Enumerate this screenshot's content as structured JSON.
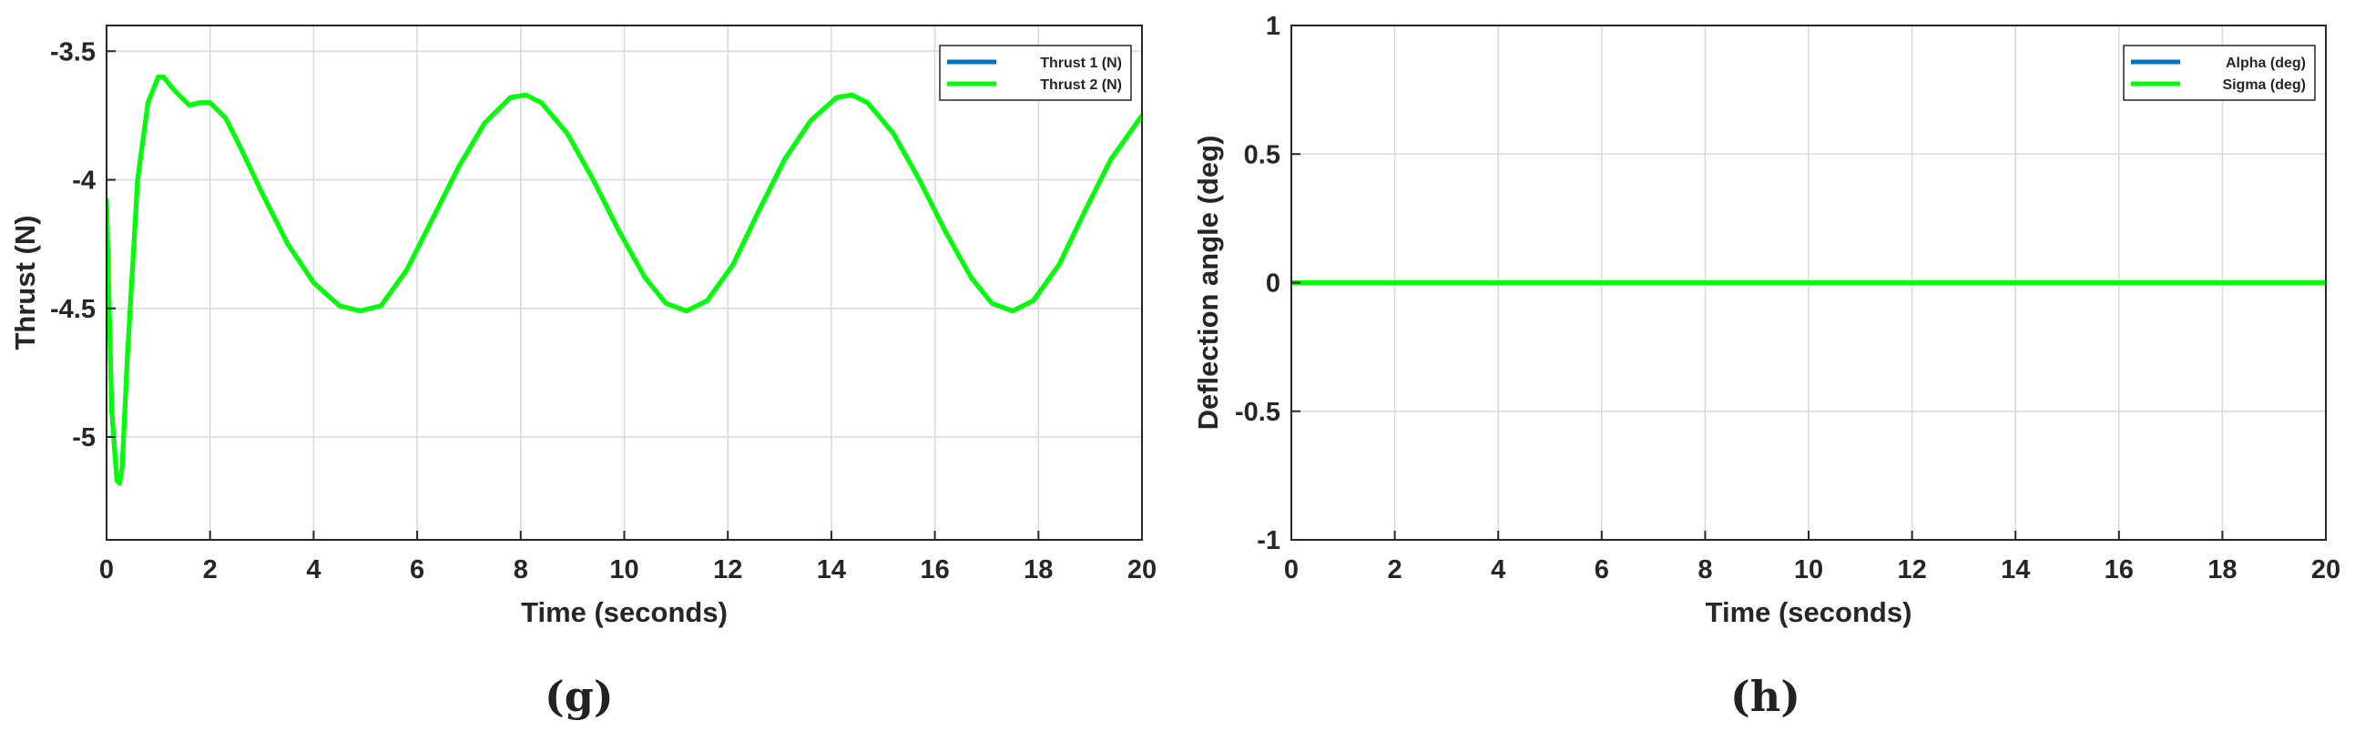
{
  "chart_data": [
    {
      "type": "line",
      "panel": "(g)",
      "title": "",
      "xlabel": "Time (seconds)",
      "ylabel": "Thrust (N)",
      "xlim": [
        0,
        20
      ],
      "ylim": [
        -5.4,
        -3.4
      ],
      "xticks": [
        0,
        2,
        4,
        6,
        8,
        10,
        12,
        14,
        16,
        18,
        20
      ],
      "yticks": [
        -5,
        -4.5,
        -4,
        -3.5
      ],
      "ytick_labels": [
        "-5",
        "-4.5",
        "-4",
        "-3.5"
      ],
      "grid": true,
      "legend_position": "top-right",
      "series": [
        {
          "name": "Thrust 1 (N)",
          "color": "#0072BD",
          "x": [
            0,
            0.1,
            0.2,
            0.25,
            0.3,
            0.4,
            0.6,
            0.8,
            1.0,
            1.1,
            1.3,
            1.6,
            1.8,
            2.0,
            2.3,
            2.6,
            3.0,
            3.5,
            4.0,
            4.5,
            4.9,
            5.3,
            5.8,
            6.3,
            6.8,
            7.3,
            7.8,
            8.1,
            8.4,
            8.9,
            9.4,
            9.9,
            10.4,
            10.8,
            11.2,
            11.6,
            12.1,
            12.6,
            13.1,
            13.6,
            14.1,
            14.4,
            14.7,
            15.2,
            15.7,
            16.2,
            16.7,
            17.1,
            17.5,
            17.9,
            18.4,
            18.9,
            19.4,
            20.0
          ],
          "y": [
            -4.08,
            -4.9,
            -5.17,
            -5.18,
            -5.12,
            -4.7,
            -4.0,
            -3.7,
            -3.6,
            -3.6,
            -3.65,
            -3.71,
            -3.7,
            -3.7,
            -3.76,
            -3.88,
            -4.05,
            -4.25,
            -4.4,
            -4.49,
            -4.51,
            -4.49,
            -4.35,
            -4.15,
            -3.95,
            -3.78,
            -3.68,
            -3.67,
            -3.7,
            -3.82,
            -4.0,
            -4.2,
            -4.38,
            -4.48,
            -4.51,
            -4.47,
            -4.33,
            -4.12,
            -3.92,
            -3.77,
            -3.68,
            -3.67,
            -3.7,
            -3.82,
            -4.0,
            -4.2,
            -4.38,
            -4.48,
            -4.51,
            -4.47,
            -4.33,
            -4.12,
            -3.92,
            -3.75
          ]
        },
        {
          "name": "Thrust 2 (N)",
          "color": "#00FF00",
          "x": [
            0,
            0.1,
            0.2,
            0.25,
            0.3,
            0.4,
            0.6,
            0.8,
            1.0,
            1.1,
            1.3,
            1.6,
            1.8,
            2.0,
            2.3,
            2.6,
            3.0,
            3.5,
            4.0,
            4.5,
            4.9,
            5.3,
            5.8,
            6.3,
            6.8,
            7.3,
            7.8,
            8.1,
            8.4,
            8.9,
            9.4,
            9.9,
            10.4,
            10.8,
            11.2,
            11.6,
            12.1,
            12.6,
            13.1,
            13.6,
            14.1,
            14.4,
            14.7,
            15.2,
            15.7,
            16.2,
            16.7,
            17.1,
            17.5,
            17.9,
            18.4,
            18.9,
            19.4,
            20.0
          ],
          "y": [
            -4.08,
            -4.9,
            -5.17,
            -5.18,
            -5.12,
            -4.7,
            -4.0,
            -3.7,
            -3.6,
            -3.6,
            -3.65,
            -3.71,
            -3.7,
            -3.7,
            -3.76,
            -3.88,
            -4.05,
            -4.25,
            -4.4,
            -4.49,
            -4.51,
            -4.49,
            -4.35,
            -4.15,
            -3.95,
            -3.78,
            -3.68,
            -3.67,
            -3.7,
            -3.82,
            -4.0,
            -4.2,
            -4.38,
            -4.48,
            -4.51,
            -4.47,
            -4.33,
            -4.12,
            -3.92,
            -3.77,
            -3.68,
            -3.67,
            -3.7,
            -3.82,
            -4.0,
            -4.2,
            -4.38,
            -4.48,
            -4.51,
            -4.47,
            -4.33,
            -4.12,
            -3.92,
            -3.75
          ]
        }
      ]
    },
    {
      "type": "line",
      "panel": "(h)",
      "title": "",
      "xlabel": "Time (seconds)",
      "ylabel": "Deflection angle (deg)",
      "xlim": [
        0,
        20
      ],
      "ylim": [
        -1,
        1
      ],
      "xticks": [
        0,
        2,
        4,
        6,
        8,
        10,
        12,
        14,
        16,
        18,
        20
      ],
      "yticks": [
        -1,
        -0.5,
        0,
        0.5,
        1
      ],
      "ytick_labels": [
        "-1",
        "-0.5",
        "0",
        "0.5",
        "1"
      ],
      "grid": true,
      "legend_position": "top-right",
      "series": [
        {
          "name": "Alpha (deg)",
          "color": "#0072BD",
          "x": [
            0,
            20
          ],
          "y": [
            0,
            0
          ]
        },
        {
          "name": "Sigma (deg)",
          "color": "#00FF00",
          "x": [
            0,
            20
          ],
          "y": [
            0,
            0
          ]
        }
      ]
    }
  ],
  "labels": {
    "g": "(g)",
    "h": "(h)"
  }
}
